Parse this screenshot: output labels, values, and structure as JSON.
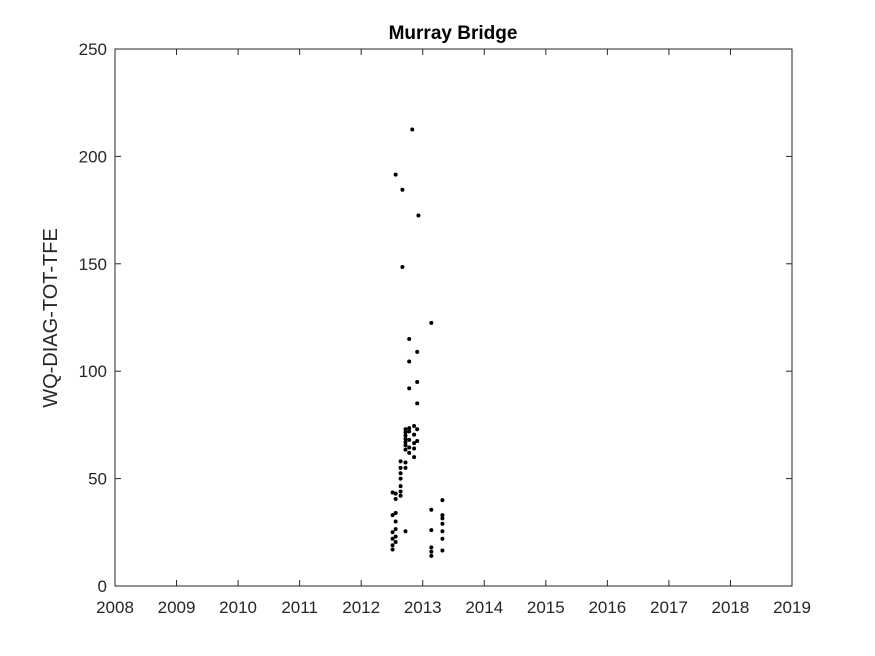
{
  "chart_data": {
    "type": "scatter",
    "title": "Murray Bridge",
    "xlabel": "",
    "ylabel": "WQ-DIAG-TOT-TFE",
    "xlim": [
      2008,
      2019
    ],
    "ylim": [
      0,
      250
    ],
    "x_ticks": [
      "2008",
      "2009",
      "2010",
      "2011",
      "2012",
      "2013",
      "2014",
      "2015",
      "2016",
      "2017",
      "2018",
      "2019"
    ],
    "y_ticks": [
      "0",
      "50",
      "100",
      "150",
      "200",
      "250"
    ],
    "grid": false,
    "marker_color": "#000000",
    "points": [
      [
        2012.51,
        17
      ],
      [
        2012.51,
        19
      ],
      [
        2012.51,
        22
      ],
      [
        2012.51,
        25
      ],
      [
        2012.51,
        33
      ],
      [
        2012.51,
        43.5
      ],
      [
        2012.56,
        20.5
      ],
      [
        2012.56,
        23
      ],
      [
        2012.56,
        26.5
      ],
      [
        2012.56,
        30
      ],
      [
        2012.56,
        34
      ],
      [
        2012.56,
        40.5
      ],
      [
        2012.56,
        43
      ],
      [
        2012.56,
        191.5
      ],
      [
        2012.64,
        42
      ],
      [
        2012.64,
        44
      ],
      [
        2012.64,
        46.5
      ],
      [
        2012.64,
        50
      ],
      [
        2012.64,
        52.5
      ],
      [
        2012.64,
        55
      ],
      [
        2012.64,
        58
      ],
      [
        2012.67,
        148.5
      ],
      [
        2012.67,
        184.5
      ],
      [
        2012.72,
        25.5
      ],
      [
        2012.72,
        55
      ],
      [
        2012.72,
        57.5
      ],
      [
        2012.72,
        63.5
      ],
      [
        2012.72,
        65.5
      ],
      [
        2012.72,
        67
      ],
      [
        2012.72,
        68.5
      ],
      [
        2012.72,
        70
      ],
      [
        2012.72,
        71.5
      ],
      [
        2012.72,
        73
      ],
      [
        2012.78,
        62
      ],
      [
        2012.78,
        64.5
      ],
      [
        2012.78,
        68
      ],
      [
        2012.78,
        72
      ],
      [
        2012.78,
        73.5
      ],
      [
        2012.78,
        92
      ],
      [
        2012.78,
        104.5
      ],
      [
        2012.78,
        115
      ],
      [
        2012.83,
        212.5
      ],
      [
        2012.86,
        60
      ],
      [
        2012.86,
        64
      ],
      [
        2012.86,
        66.5
      ],
      [
        2012.86,
        70.5
      ],
      [
        2012.86,
        74.5
      ],
      [
        2012.91,
        67.5
      ],
      [
        2012.91,
        73
      ],
      [
        2012.91,
        85
      ],
      [
        2012.91,
        95
      ],
      [
        2012.91,
        109
      ],
      [
        2012.93,
        172.5
      ],
      [
        2013.14,
        14
      ],
      [
        2013.14,
        16
      ],
      [
        2013.14,
        18
      ],
      [
        2013.14,
        26
      ],
      [
        2013.14,
        35.5
      ],
      [
        2013.14,
        122.5
      ],
      [
        2013.32,
        16.5
      ],
      [
        2013.32,
        22
      ],
      [
        2013.32,
        25.5
      ],
      [
        2013.32,
        29
      ],
      [
        2013.32,
        31.5
      ],
      [
        2013.32,
        33
      ],
      [
        2013.32,
        40
      ]
    ]
  }
}
